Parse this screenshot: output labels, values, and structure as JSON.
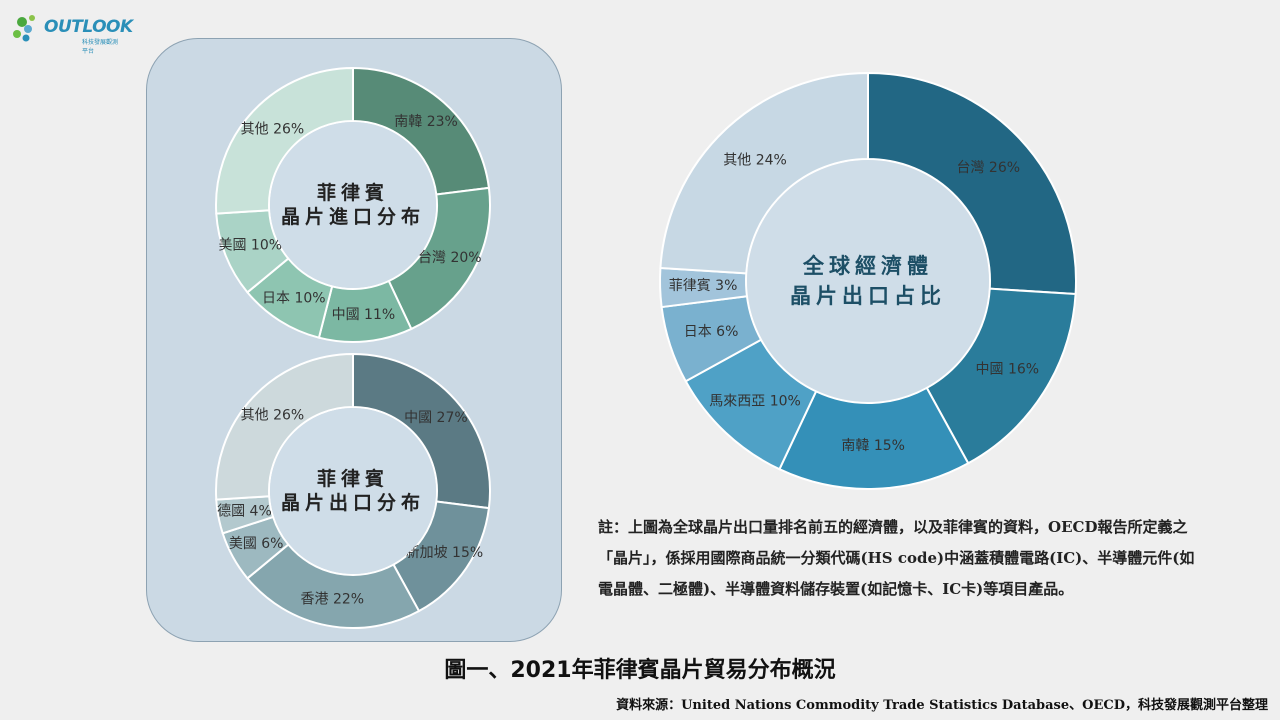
{
  "logo": {
    "text": "OUTLOOK",
    "sub": "科技發展觀測平台"
  },
  "chart_data": [
    {
      "type": "pie",
      "title": [
        "菲律賓",
        "晶片進口分布"
      ],
      "labels": [
        "南韓",
        "台灣",
        "中國",
        "日本",
        "美國",
        "其他"
      ],
      "values": [
        23,
        20,
        11,
        10,
        10,
        26
      ],
      "colors": [
        "#578b77",
        "#67a18c",
        "#7cb8a3",
        "#8ec5b1",
        "#aad3c6",
        "#c8e2d9"
      ]
    },
    {
      "type": "pie",
      "title": [
        "菲律賓",
        "晶片出口分布"
      ],
      "labels": [
        "中國",
        "新加坡",
        "香港",
        "美國",
        "德國",
        "其他"
      ],
      "values": [
        27,
        15,
        22,
        6,
        4,
        26
      ],
      "colors": [
        "#5b7a84",
        "#6f919b",
        "#85a6ae",
        "#9db9c0",
        "#b3c9ce",
        "#cdd9dc"
      ]
    },
    {
      "type": "pie",
      "title": [
        "全球經濟體",
        "晶片出口占比"
      ],
      "labels": [
        "台灣",
        "中國",
        "南韓",
        "馬來西亞",
        "日本",
        "菲律賓",
        "其他"
      ],
      "values": [
        26,
        16,
        15,
        10,
        6,
        3,
        24
      ],
      "colors": [
        "#226784",
        "#2a7c9b",
        "#3490b8",
        "#4fa1c6",
        "#7ab1cf",
        "#a2c4db",
        "#c7d8e4"
      ]
    }
  ],
  "note": "註：上圖為全球晶片出口量排名前五的經濟體，以及菲律賓的資料，OECD報告所定義之「晶片」，係採用國際商品統一分類代碼(HS code)中涵蓋積體電路(IC)、半導體元件(如電晶體、二極體)、半導體資料儲存裝置(如記憶卡、IC卡)等項目產品。",
  "figure_title": "圖一、2021年菲律賓晶片貿易分布概況",
  "source": "資料來源：United Nations Commodity Trade Statistics Database、OECD，科技發展觀測平台整理"
}
